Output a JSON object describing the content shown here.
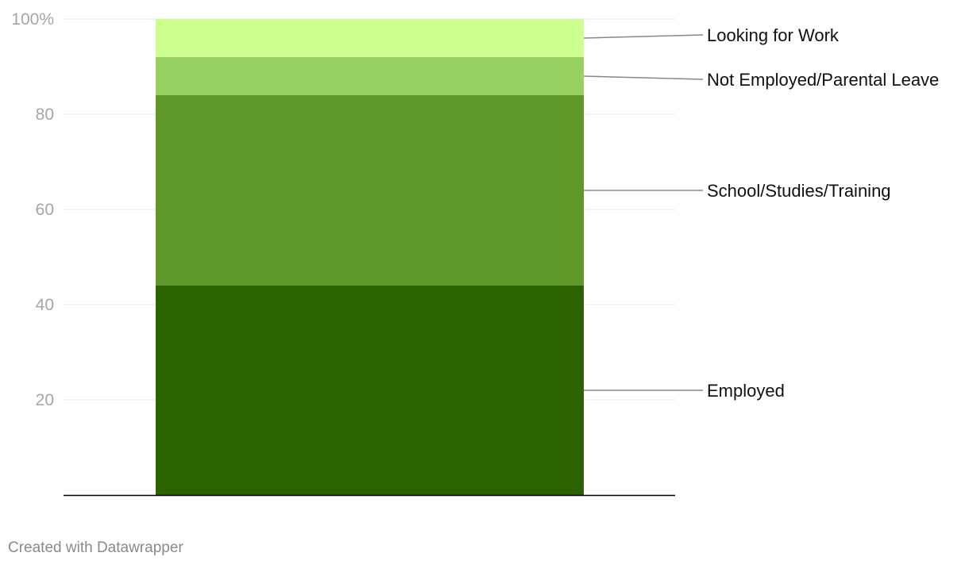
{
  "chart_data": {
    "type": "bar",
    "stacked": true,
    "percent_stacked": true,
    "categories": [
      ""
    ],
    "series": [
      {
        "name": "Employed",
        "values": [
          44
        ],
        "color": "#2a6300"
      },
      {
        "name": "School/Studies/Training",
        "values": [
          40
        ],
        "color": "#5f9828"
      },
      {
        "name": "Not Employed/Parental Leave",
        "values": [
          8
        ],
        "color": "#98d162"
      },
      {
        "name": "Looking for Work",
        "values": [
          8
        ],
        "color": "#ccff90"
      }
    ],
    "ylim": [
      0,
      100
    ],
    "yticks": [
      20,
      40,
      60,
      80,
      100
    ],
    "ytick_labels": [
      "20",
      "40",
      "60",
      "80",
      "100%"
    ],
    "grid": true,
    "legend": "direct labels on right",
    "title": "",
    "xlabel": "",
    "ylabel": ""
  },
  "footer": {
    "credit": "Created with Datawrapper"
  },
  "colors": {
    "gridline": "#e3e3e3",
    "baseline": "#000000",
    "tick_text": "#a6a6a6",
    "leader_line": "#888888"
  }
}
